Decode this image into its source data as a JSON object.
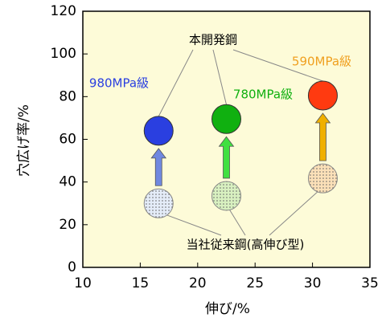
{
  "chart_data": {
    "type": "scatter",
    "xlabel": "伸び/%",
    "ylabel": "穴広げ率/%",
    "xlim": [
      10,
      35
    ],
    "xticks": [
      10,
      15,
      20,
      25,
      30,
      35
    ],
    "ylim": [
      0,
      120
    ],
    "yticks": [
      0,
      20,
      40,
      60,
      80,
      100,
      120
    ],
    "background": "#fdfbd8",
    "series": [
      {
        "name": "本開発鋼",
        "x": [
          16.6,
          22.5,
          30.9
        ],
        "values": [
          64,
          69.5,
          80.5
        ],
        "colors": [
          "#2a3fe0",
          "#10b010",
          "#ff3a10"
        ],
        "labels": [
          "980MPa級",
          "780MPa級",
          "590MPa級"
        ],
        "label_colors": [
          "#2a3fe0",
          "#10b010",
          "#f0a020"
        ]
      },
      {
        "name": "当社従来鋼(高伸び型)",
        "x": [
          16.6,
          22.5,
          30.9
        ],
        "values": [
          30,
          33.5,
          41.7
        ],
        "colors": [
          "#e4ecf8",
          "#d8f0c0",
          "#fbe0b8"
        ]
      }
    ],
    "arrow_colors": [
      "#7088e0",
      "#40e040",
      "#f0b000"
    ]
  }
}
